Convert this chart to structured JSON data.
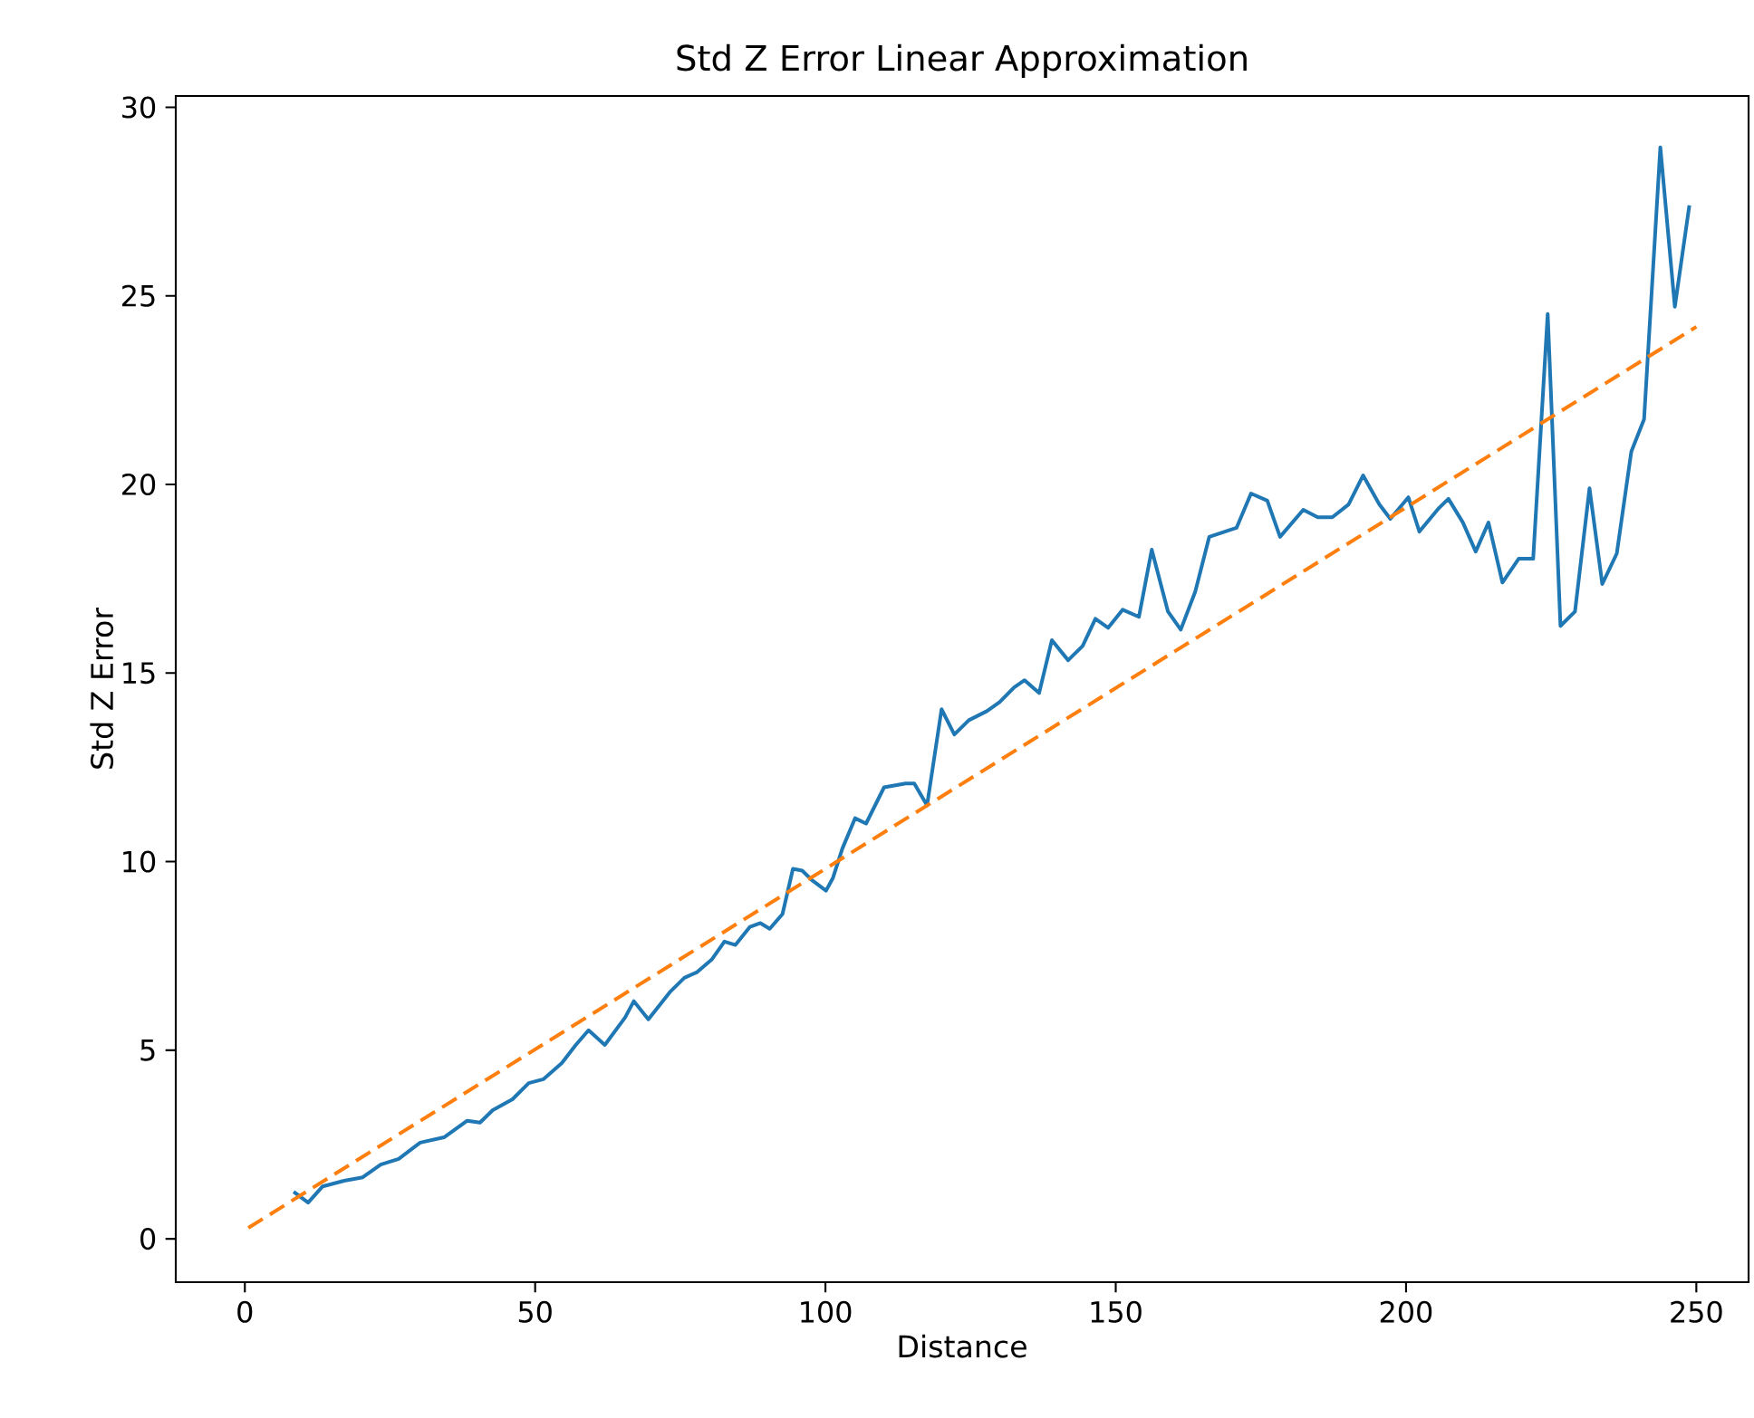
{
  "chart_data": {
    "type": "line",
    "title": "Std Z Error Linear Approximation",
    "xlabel": "Distance",
    "ylabel": "Std Z Error",
    "xlim": [
      -11.9,
      259
    ],
    "ylim": [
      -1.15,
      30.3
    ],
    "xticks": [
      0,
      50,
      100,
      150,
      200,
      250
    ],
    "yticks": [
      0,
      5,
      10,
      15,
      20,
      25,
      30
    ],
    "series": [
      {
        "color": "#1f77b4",
        "line_style": "solid",
        "x": [
          8.4,
          10.9,
          13.4,
          17.1,
          20.3,
          23.4,
          26.5,
          30.2,
          34.3,
          38.3,
          40.5,
          42.7,
          46.1,
          48.9,
          51.4,
          54.6,
          57.0,
          59.2,
          62.0,
          65.5,
          67.0,
          69.5,
          73.2,
          75.7,
          77.9,
          80.4,
          82.6,
          84.5,
          87.0,
          88.8,
          90.4,
          92.6,
          94.4,
          96.0,
          97.6,
          100.1,
          101.3,
          102.9,
          105.1,
          107.0,
          110.1,
          113.8,
          115.3,
          117.5,
          120.0,
          122.2,
          124.7,
          127.8,
          130.0,
          132.5,
          134.3,
          136.8,
          139.0,
          141.8,
          144.3,
          146.5,
          148.7,
          151.2,
          154.0,
          156.2,
          159.0,
          161.2,
          163.7,
          166.1,
          170.8,
          173.3,
          176.1,
          178.3,
          182.3,
          184.8,
          187.3,
          190.1,
          192.6,
          195.4,
          197.3,
          200.4,
          202.3,
          205.7,
          207.3,
          209.8,
          212.0,
          214.2,
          216.6,
          219.4,
          221.9,
          224.4,
          226.6,
          229.1,
          231.6,
          233.8,
          236.3,
          238.8,
          241.0,
          243.8,
          246.3,
          248.8
        ],
        "values": [
          1.25,
          0.96,
          1.39,
          1.54,
          1.63,
          1.97,
          2.12,
          2.55,
          2.69,
          3.13,
          3.08,
          3.41,
          3.7,
          4.13,
          4.23,
          4.66,
          5.14,
          5.53,
          5.14,
          5.87,
          6.3,
          5.82,
          6.54,
          6.92,
          7.07,
          7.4,
          7.88,
          7.79,
          8.27,
          8.37,
          8.22,
          8.61,
          9.81,
          9.76,
          9.52,
          9.23,
          9.57,
          10.34,
          11.15,
          11.01,
          11.97,
          12.07,
          12.07,
          11.49,
          14.04,
          13.37,
          13.75,
          13.99,
          14.23,
          14.62,
          14.81,
          14.47,
          15.87,
          15.34,
          15.72,
          16.44,
          16.2,
          16.68,
          16.49,
          18.27,
          16.63,
          16.15,
          17.16,
          18.61,
          18.85,
          19.76,
          19.57,
          18.61,
          19.33,
          19.13,
          19.13,
          19.47,
          20.24,
          19.47,
          19.09,
          19.66,
          18.75,
          19.38,
          19.62,
          18.99,
          18.22,
          18.99,
          17.4,
          18.03,
          18.03,
          24.52,
          16.25,
          16.63,
          19.9,
          17.36,
          18.17,
          20.87,
          21.73,
          28.94,
          24.71,
          27.4
        ]
      },
      {
        "color": "#ff7f0e",
        "line_style": "dashed",
        "x": [
          0.6,
          250
        ],
        "values": [
          0.29,
          24.18
        ]
      }
    ]
  }
}
